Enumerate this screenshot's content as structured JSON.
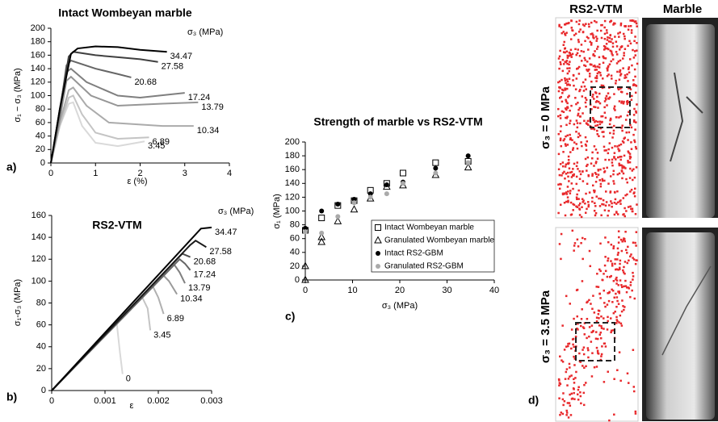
{
  "chart_data": [
    {
      "type": "line",
      "panel_label": "a)",
      "title": "Intact Wombeyan marble",
      "xlabel": "ε  (%)",
      "ylabel": "σ₁ − σ₃ (MPa)",
      "legend_title": "σ₃ (MPa)",
      "xlim": [
        0,
        4
      ],
      "xticks": [
        0,
        1,
        2,
        3,
        4
      ],
      "ylim": [
        0,
        200
      ],
      "yticks": [
        0,
        20,
        40,
        60,
        80,
        100,
        120,
        140,
        160,
        180,
        200
      ],
      "grid": false,
      "series": [
        {
          "name": "3.45",
          "color": "#d9d9d9",
          "x": [
            0,
            0.2,
            0.4,
            0.5,
            0.7,
            1.0,
            1.5,
            2.1
          ],
          "values": [
            0,
            55,
            88,
            90,
            55,
            30,
            25,
            32
          ]
        },
        {
          "name": "6.89",
          "color": "#c4c4c4",
          "x": [
            0,
            0.2,
            0.4,
            0.5,
            0.7,
            1.0,
            1.5,
            2.2
          ],
          "values": [
            0,
            55,
            97,
            100,
            72,
            45,
            36,
            38
          ]
        },
        {
          "name": "10.34",
          "color": "#ababab",
          "x": [
            0,
            0.2,
            0.4,
            0.5,
            0.8,
            1.3,
            2.5,
            3.2
          ],
          "values": [
            0,
            60,
            108,
            112,
            85,
            60,
            55,
            55
          ]
        },
        {
          "name": "13.79",
          "color": "#969696",
          "x": [
            0,
            0.2,
            0.35,
            0.45,
            0.9,
            1.5,
            2.5,
            3.3
          ],
          "values": [
            0,
            65,
            122,
            128,
            100,
            85,
            88,
            90
          ]
        },
        {
          "name": "17.24",
          "color": "#7f7f7f",
          "x": [
            0,
            0.2,
            0.35,
            0.45,
            0.8,
            1.5,
            2.0,
            3.0
          ],
          "values": [
            0,
            70,
            135,
            140,
            120,
            100,
            97,
            104
          ]
        },
        {
          "name": "20.68",
          "color": "#666666",
          "x": [
            0,
            0.2,
            0.35,
            0.45,
            1.0,
            1.5,
            1.8
          ],
          "values": [
            0,
            75,
            145,
            152,
            140,
            132,
            127
          ]
        },
        {
          "name": "27.58",
          "color": "#404040",
          "x": [
            0,
            0.2,
            0.4,
            0.5,
            1.0,
            1.5,
            2.0,
            2.4
          ],
          "values": [
            0,
            80,
            158,
            165,
            160,
            157,
            154,
            150
          ]
        },
        {
          "name": "34.47",
          "color": "#000000",
          "x": [
            0,
            0.2,
            0.45,
            0.6,
            1.0,
            1.5,
            2.0,
            2.6
          ],
          "values": [
            0,
            80,
            162,
            170,
            173,
            172,
            168,
            165
          ]
        }
      ]
    },
    {
      "type": "line",
      "panel_label": "b)",
      "title": "RS2-VTM",
      "xlabel": "ε",
      "ylabel": "σ₁-σ₃ (MPa)",
      "legend_title": "σ₃ (MPa)",
      "xlim": [
        0,
        0.003
      ],
      "xticks": [
        0,
        0.001,
        0.002,
        0.003
      ],
      "ylim": [
        0,
        160
      ],
      "yticks": [
        0,
        20,
        40,
        60,
        80,
        100,
        120,
        140,
        160
      ],
      "grid": false,
      "series": [
        {
          "name": "0",
          "color": "#d9d9d9",
          "x": [
            0,
            0.00122,
            0.00128,
            0.00133
          ],
          "values": [
            0,
            62,
            35,
            15
          ]
        },
        {
          "name": "3.45",
          "color": "#c4c4c4",
          "x": [
            0,
            0.0017,
            0.0018,
            0.00185
          ],
          "values": [
            0,
            85,
            75,
            55
          ]
        },
        {
          "name": "6.89",
          "color": "#b0b0b0",
          "x": [
            0,
            0.0019,
            0.002,
            0.0021
          ],
          "values": [
            0,
            95,
            85,
            70
          ]
        },
        {
          "name": "10.34",
          "color": "#9a9a9a",
          "x": [
            0,
            0.0021,
            0.0022,
            0.00235
          ],
          "values": [
            0,
            105,
            100,
            88
          ]
        },
        {
          "name": "13.79",
          "color": "#808080",
          "x": [
            0,
            0.0023,
            0.0024,
            0.0025
          ],
          "values": [
            0,
            115,
            108,
            98
          ]
        },
        {
          "name": "17.24",
          "color": "#666666",
          "x": [
            0,
            0.0024,
            0.0025,
            0.0026
          ],
          "values": [
            0,
            120,
            116,
            110
          ]
        },
        {
          "name": "20.68",
          "color": "#4d4d4d",
          "x": [
            0,
            0.00245,
            0.0026
          ],
          "values": [
            0,
            125,
            122
          ]
        },
        {
          "name": "27.58",
          "color": "#1a1a1a",
          "x": [
            0,
            0.0026,
            0.0027,
            0.0029
          ],
          "values": [
            0,
            133,
            137,
            131
          ]
        },
        {
          "name": "34.47",
          "color": "#000000",
          "x": [
            0,
            0.0028,
            0.003
          ],
          "values": [
            0,
            148,
            149
          ]
        }
      ]
    },
    {
      "type": "scatter",
      "panel_label": "c)",
      "title": "Strength of marble vs RS2-VTM",
      "xlabel": "σ₃ (MPa)",
      "ylabel": "σ₁ (MPa)",
      "legend": "lower right",
      "xlim": [
        0,
        40
      ],
      "xticks": [
        0,
        10,
        20,
        30,
        40
      ],
      "ylim": [
        0,
        200
      ],
      "yticks": [
        0,
        20,
        40,
        60,
        80,
        100,
        120,
        140,
        160,
        180,
        200
      ],
      "grid": false,
      "series": [
        {
          "name": "Intact Wombeyan marble",
          "marker": "square-open",
          "color": "#000000",
          "x": [
            0,
            3.45,
            6.89,
            10.34,
            13.79,
            17.24,
            20.68,
            27.58,
            34.47
          ],
          "values": [
            72,
            90,
            108,
            115,
            130,
            140,
            155,
            170,
            172
          ]
        },
        {
          "name": "Granulated Wombeyan marble",
          "marker": "triangle-open",
          "color": "#000000",
          "x": [
            0,
            0,
            3.45,
            3.45,
            6.89,
            10.34,
            13.79,
            17.24,
            20.68,
            27.58,
            34.47
          ],
          "values": [
            0,
            20,
            55,
            62,
            85,
            102,
            118,
            135,
            137,
            152,
            163
          ]
        },
        {
          "name": "Intact RS2-GBM",
          "marker": "circle",
          "color": "#000000",
          "x": [
            0,
            3.45,
            6.89,
            10.34,
            13.79,
            17.24,
            20.68,
            27.58,
            34.47
          ],
          "values": [
            75,
            100,
            110,
            117,
            125,
            138,
            142,
            162,
            180
          ]
        },
        {
          "name": "Granulated RS2-GBM",
          "marker": "circle",
          "color": "#aaaaaa",
          "x": [
            0,
            3.45,
            6.89,
            10.34,
            13.79,
            17.24,
            20.68,
            27.58,
            34.47
          ],
          "values": [
            70,
            68,
            92,
            112,
            120,
            125,
            140,
            155,
            170
          ]
        }
      ]
    }
  ],
  "image_panel": {
    "panel_label": "d)",
    "columns": [
      "RS2-VTM",
      "Marble"
    ],
    "rows": [
      "σ₃ = 0 MPa",
      "σ₃ = 3.5 MPa"
    ]
  }
}
